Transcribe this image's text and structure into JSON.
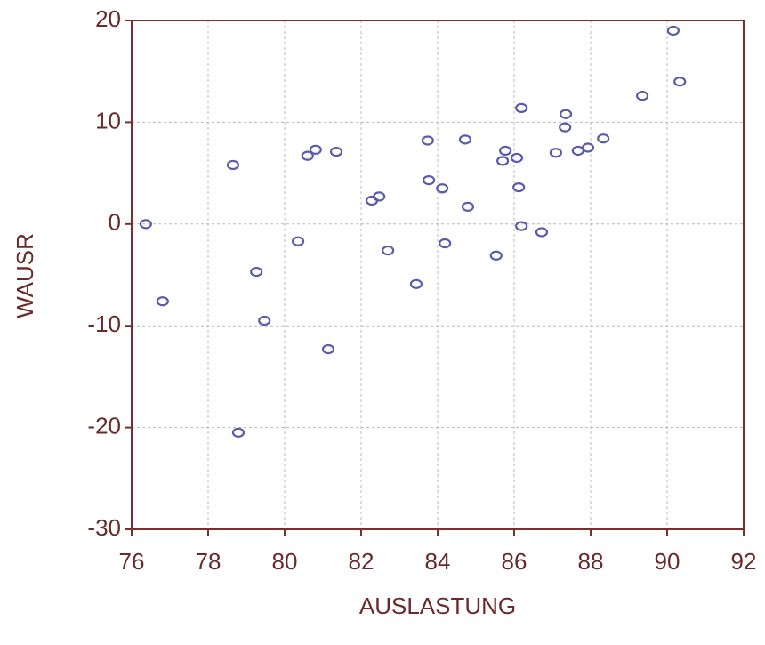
{
  "chart_data": {
    "type": "scatter",
    "x_label": "AUSLASTUNG",
    "y_label": "WAUSR",
    "x": [
      76.37,
      76.81,
      78.65,
      78.79,
      79.26,
      79.47,
      80.35,
      80.6,
      80.81,
      81.14,
      81.35,
      82.28,
      82.47,
      82.7,
      83.44,
      83.74,
      83.77,
      84.12,
      84.19,
      84.72,
      84.79,
      85.53,
      85.7,
      85.77,
      86.07,
      86.12,
      86.19,
      86.19,
      86.72,
      87.09,
      87.33,
      87.35,
      87.67,
      87.93,
      88.33,
      89.35,
      90.16,
      90.33
    ],
    "y": [
      0.0,
      -7.6,
      5.8,
      -20.5,
      -4.7,
      -9.5,
      -1.7,
      6.7,
      7.3,
      -12.3,
      7.1,
      2.3,
      2.7,
      -2.6,
      -5.9,
      8.2,
      4.3,
      3.5,
      -1.9,
      8.3,
      1.7,
      -3.1,
      6.2,
      7.2,
      6.5,
      3.6,
      -0.2,
      11.4,
      -0.8,
      7.0,
      9.5,
      10.8,
      7.2,
      7.5,
      8.4,
      12.6,
      19.0,
      14.0
    ],
    "color": "#5b5bab",
    "xlim": [
      76,
      92
    ],
    "xticks": [
      76,
      78,
      80,
      82,
      84,
      86,
      88,
      90,
      92
    ],
    "ylim": [
      -30,
      20
    ],
    "yticks": [
      -30,
      -20,
      -10,
      0,
      10,
      20
    ],
    "grid": true
  }
}
